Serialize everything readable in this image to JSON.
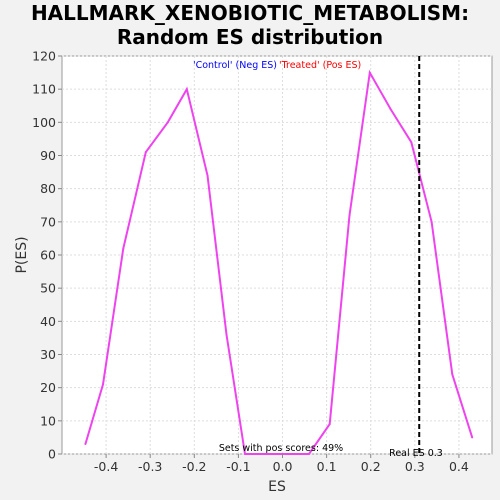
{
  "chart_data": {
    "type": "line",
    "title_line1": "HALLMARK_XENOBIOTIC_METABOLISM:",
    "title_line2": "Random ES distribution",
    "xlabel": "ES",
    "ylabel": "P(ES)",
    "xlim": [
      -0.5,
      0.475
    ],
    "ylim": [
      0,
      120
    ],
    "x_ticks": [
      -0.4,
      -0.3,
      -0.2,
      -0.1,
      0.0,
      0.1,
      0.2,
      0.3,
      0.4
    ],
    "x_tick_labels": [
      "-0.4",
      "-0.3",
      "-0.2",
      "-0.1",
      "0.0",
      "0.1",
      "0.2",
      "0.3",
      "0.4"
    ],
    "y_ticks": [
      0,
      10,
      20,
      30,
      40,
      50,
      60,
      70,
      80,
      90,
      100,
      110,
      120
    ],
    "y_tick_labels": [
      "0",
      "10",
      "20",
      "30",
      "40",
      "50",
      "60",
      "70",
      "80",
      "90",
      "100",
      "110",
      "120"
    ],
    "grid": true,
    "legend": {
      "control_label": "'Control' (Neg ES)",
      "treated_label": "'Treated' (Pos ES)",
      "control_color": "#0000ff",
      "treated_color": "#ff0000"
    },
    "series": [
      {
        "color": "#ee44ee",
        "x": [
          -0.447,
          -0.407,
          -0.361,
          -0.31,
          -0.26,
          -0.217,
          -0.17,
          -0.127,
          -0.085,
          -0.04,
          0.0,
          0.06,
          0.107,
          0.152,
          0.198,
          0.245,
          0.292,
          0.338,
          0.385,
          0.43
        ],
        "y": [
          3,
          21,
          62,
          91,
          100,
          110,
          84,
          36,
          0,
          0,
          0,
          0,
          9,
          72,
          115,
          104,
          94,
          70,
          24,
          5
        ]
      }
    ],
    "real_es": {
      "x": 0.31,
      "label": "Real ES 0.3"
    },
    "annotation": "Sets with pos scores: 49%"
  }
}
